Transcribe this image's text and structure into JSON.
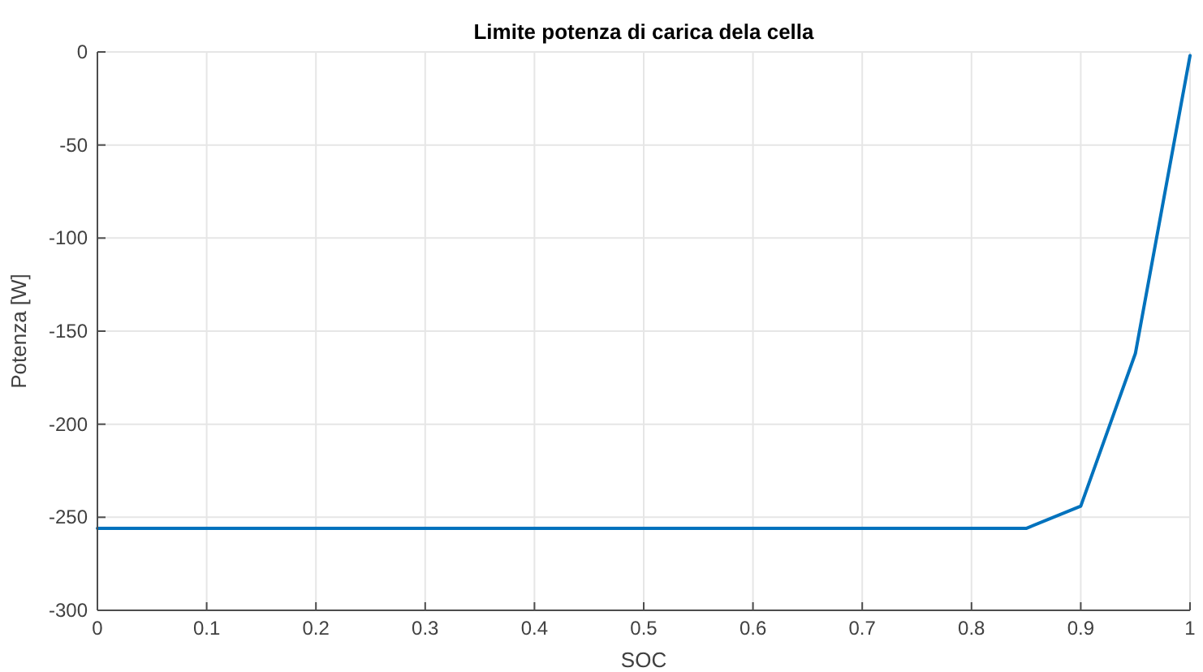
{
  "chart_data": {
    "type": "line",
    "title": "Limite potenza di carica dela cella",
    "xlabel": "SOC",
    "ylabel": "Potenza [W]",
    "x": [
      0,
      0.85,
      0.9,
      0.95,
      1
    ],
    "series": [
      {
        "color": "#0072bd",
        "values": [
          -256,
          -256,
          -244,
          -162,
          -2
        ]
      }
    ],
    "xlim": [
      0,
      1
    ],
    "ylim": [
      -300,
      0
    ],
    "xticks": [
      0,
      0.1,
      0.2,
      0.3,
      0.4,
      0.5,
      0.6,
      0.7,
      0.8,
      0.9,
      1
    ],
    "yticks": [
      -300,
      -250,
      -200,
      -150,
      -100,
      -50,
      0
    ],
    "grid": true,
    "line_style": "solid"
  }
}
